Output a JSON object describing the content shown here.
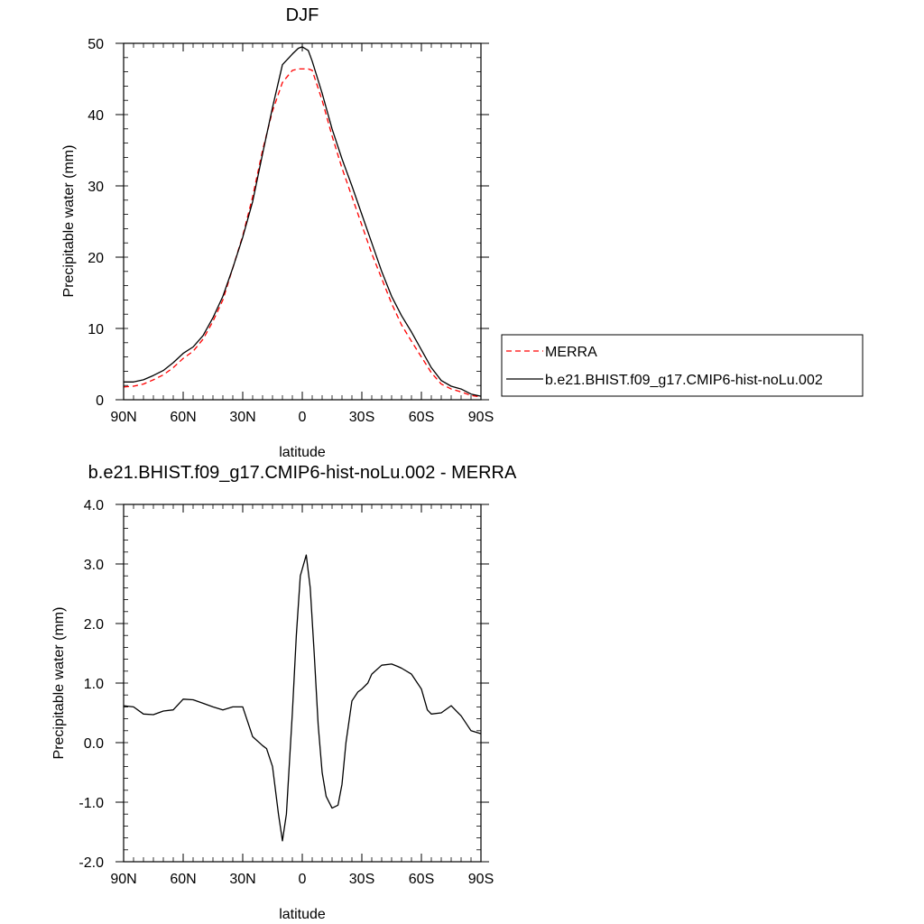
{
  "chart_data": [
    {
      "type": "line",
      "title": "DJF",
      "xlabel": "latitude",
      "ylabel": "Precipitable water (mm)",
      "xlim": [
        90,
        -90
      ],
      "ylim": [
        0,
        50
      ],
      "xticks": [
        90,
        60,
        30,
        0,
        -30,
        -60,
        -90
      ],
      "xtick_labels": [
        "90N",
        "60N",
        "30N",
        "0",
        "30S",
        "60S",
        "90S"
      ],
      "yticks": [
        0,
        10,
        20,
        30,
        40,
        50
      ],
      "ytick_labels": [
        "0",
        "10",
        "20",
        "30",
        "40",
        "50"
      ],
      "legend_position": "right",
      "series": [
        {
          "name": "MERRA",
          "color": "#ff0000",
          "dash": true,
          "x": [
            90,
            85,
            80,
            75,
            70,
            65,
            60,
            55,
            50,
            45,
            40,
            35,
            30,
            25,
            20,
            15,
            10,
            5,
            2,
            0,
            -3,
            -5,
            -10,
            -15,
            -20,
            -25,
            -30,
            -35,
            -40,
            -45,
            -50,
            -55,
            -60,
            -65,
            -70,
            -75,
            -80,
            -85,
            -90
          ],
          "y": [
            1.8,
            1.9,
            2.2,
            2.8,
            3.5,
            4.5,
            5.8,
            6.8,
            8.5,
            11.0,
            14.0,
            18.5,
            23.0,
            28.5,
            35.0,
            40.5,
            44.5,
            46.2,
            46.4,
            46.4,
            46.4,
            46.2,
            42.0,
            37.0,
            32.5,
            28.5,
            24.5,
            20.5,
            17.0,
            13.5,
            10.5,
            8.2,
            6.0,
            3.8,
            2.2,
            1.5,
            1.1,
            0.6,
            0.4
          ]
        },
        {
          "name": "b.e21.BHIST.f09_g17.CMIP6-hist-noLu.002",
          "color": "#000000",
          "dash": false,
          "x": [
            90,
            85,
            80,
            75,
            70,
            65,
            60,
            55,
            50,
            45,
            40,
            35,
            30,
            25,
            20,
            15,
            10,
            5,
            2,
            0,
            -3,
            -5,
            -10,
            -15,
            -20,
            -25,
            -30,
            -35,
            -40,
            -45,
            -50,
            -55,
            -60,
            -65,
            -70,
            -75,
            -80,
            -85,
            -90
          ],
          "y": [
            2.5,
            2.5,
            2.8,
            3.4,
            4.1,
            5.2,
            6.5,
            7.4,
            9.0,
            11.5,
            14.5,
            18.5,
            22.8,
            27.8,
            34.5,
            41.0,
            47.0,
            48.5,
            49.3,
            49.5,
            49.0,
            47.5,
            43.0,
            38.0,
            33.8,
            30.0,
            26.0,
            22.0,
            18.0,
            14.5,
            11.8,
            9.5,
            7.0,
            4.5,
            2.7,
            1.9,
            1.5,
            0.8,
            0.5
          ]
        }
      ]
    },
    {
      "type": "line",
      "title": "b.e21.BHIST.f09_g17.CMIP6-hist-noLu.002 - MERRA",
      "xlabel": "latitude",
      "ylabel": "Precipitable water (mm)",
      "xlim": [
        90,
        -90
      ],
      "ylim": [
        -2.0,
        4.0
      ],
      "xticks": [
        90,
        60,
        30,
        0,
        -30,
        -60,
        -90
      ],
      "xtick_labels": [
        "90N",
        "60N",
        "30N",
        "0",
        "30S",
        "60S",
        "90S"
      ],
      "yticks": [
        -2.0,
        -1.0,
        0.0,
        1.0,
        2.0,
        3.0,
        4.0
      ],
      "ytick_labels": [
        "-2.0",
        "-1.0",
        "0.0",
        "1.0",
        "2.0",
        "3.0",
        "4.0"
      ],
      "series": [
        {
          "color": "#000000",
          "dash": false,
          "x": [
            90,
            85,
            80,
            75,
            70,
            65,
            60,
            55,
            50,
            45,
            40,
            35,
            30,
            25,
            20,
            18,
            15,
            12,
            10,
            8,
            5,
            3,
            1,
            -2,
            -4,
            -6,
            -8,
            -10,
            -12,
            -15,
            -18,
            -20,
            -22,
            -25,
            -28,
            -30,
            -33,
            -35,
            -40,
            -45,
            -48,
            -50,
            -55,
            -60,
            -63,
            -65,
            -70,
            -75,
            -80,
            -85,
            -90
          ],
          "y": [
            0.62,
            0.6,
            0.48,
            0.47,
            0.53,
            0.55,
            0.73,
            0.72,
            0.66,
            0.6,
            0.55,
            0.6,
            0.6,
            0.1,
            -0.05,
            -0.1,
            -0.4,
            -1.2,
            -1.65,
            -1.2,
            0.5,
            1.8,
            2.8,
            3.15,
            2.6,
            1.5,
            0.3,
            -0.5,
            -0.9,
            -1.1,
            -1.05,
            -0.7,
            0.0,
            0.7,
            0.85,
            0.9,
            1.0,
            1.15,
            1.3,
            1.32,
            1.28,
            1.25,
            1.15,
            0.9,
            0.55,
            0.48,
            0.5,
            0.62,
            0.45,
            0.2,
            0.15
          ]
        }
      ]
    }
  ]
}
